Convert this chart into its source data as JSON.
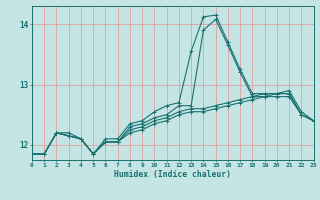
{
  "xlabel": "Humidex (Indice chaleur)",
  "xlim": [
    0,
    23
  ],
  "ylim": [
    11.75,
    14.3
  ],
  "background_color": "#c5e5e5",
  "grid_color": "#dda0a0",
  "line_color": "#1a7070",
  "hours": [
    0,
    1,
    2,
    3,
    4,
    5,
    6,
    7,
    8,
    9,
    10,
    11,
    12,
    13,
    14,
    15,
    16,
    17,
    18,
    19,
    20,
    21,
    22,
    23
  ],
  "line1": [
    11.85,
    11.85,
    12.2,
    12.2,
    12.1,
    11.85,
    12.1,
    12.1,
    12.35,
    12.4,
    12.55,
    12.65,
    12.7,
    13.55,
    14.12,
    14.15,
    13.7,
    13.25,
    12.85,
    12.85,
    12.85,
    12.9,
    12.55,
    12.4
  ],
  "line2": [
    11.85,
    11.85,
    12.2,
    12.15,
    12.1,
    11.85,
    12.05,
    12.05,
    12.3,
    12.35,
    12.45,
    12.5,
    12.65,
    12.65,
    13.9,
    14.08,
    13.65,
    13.2,
    12.8,
    12.8,
    12.8,
    12.8,
    12.5,
    12.4
  ],
  "line3": [
    11.85,
    11.85,
    12.2,
    12.15,
    12.1,
    11.85,
    12.05,
    12.05,
    12.25,
    12.3,
    12.4,
    12.45,
    12.55,
    12.6,
    12.6,
    12.65,
    12.7,
    12.75,
    12.8,
    12.85,
    12.85,
    12.85,
    12.5,
    12.4
  ],
  "line4": [
    11.85,
    11.85,
    12.2,
    12.15,
    12.1,
    11.85,
    12.05,
    12.05,
    12.2,
    12.25,
    12.35,
    12.4,
    12.5,
    12.55,
    12.55,
    12.6,
    12.65,
    12.7,
    12.75,
    12.8,
    12.85,
    12.85,
    12.5,
    12.4
  ]
}
